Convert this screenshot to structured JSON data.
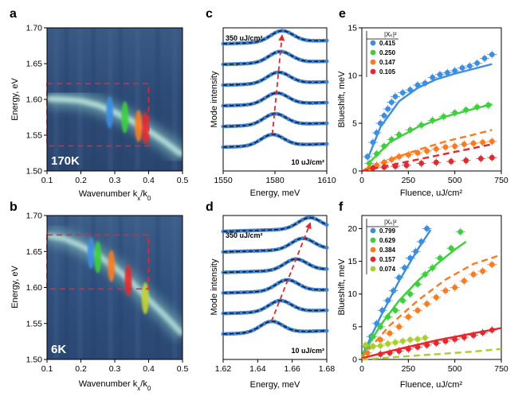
{
  "chart_data": [
    {
      "panel": "a",
      "type": "heatmap",
      "xlabel": "Wavenumber k_x/k_0",
      "ylabel": "Energy, eV",
      "xlim": [
        0.1,
        0.5
      ],
      "ylim": [
        1.5,
        1.7
      ],
      "xticks": [
        "0.1",
        "0.2",
        "0.3",
        "0.4",
        "0.5"
      ],
      "yticks": [
        "1.50",
        "1.55",
        "1.60",
        "1.65",
        "1.70"
      ],
      "temperature_label": "170K",
      "dispersion": [
        [
          0.1,
          1.601
        ],
        [
          0.15,
          1.6
        ],
        [
          0.2,
          1.598
        ],
        [
          0.25,
          1.592
        ],
        [
          0.3,
          1.582
        ],
        [
          0.35,
          1.57
        ],
        [
          0.4,
          1.556
        ],
        [
          0.45,
          1.54
        ],
        [
          0.5,
          1.522
        ]
      ],
      "roi": {
        "k": [
          0.1,
          0.4
        ],
        "E": [
          1.535,
          1.622
        ]
      },
      "colored_spots": [
        {
          "k": 0.285,
          "E": 1.582,
          "color": "#3a8ee6"
        },
        {
          "k": 0.33,
          "E": 1.575,
          "color": "#3bd13b"
        },
        {
          "k": 0.37,
          "E": 1.563,
          "color": "#ff7a1a"
        },
        {
          "k": 0.39,
          "E": 1.56,
          "color": "#e8262b"
        }
      ]
    },
    {
      "panel": "b",
      "type": "heatmap",
      "xlabel": "Wavenumber k_x/k_0",
      "ylabel": "Energy, eV",
      "xlim": [
        0.1,
        0.5
      ],
      "ylim": [
        1.5,
        1.7
      ],
      "xticks": [
        "0.1",
        "0.2",
        "0.3",
        "0.4",
        "0.5"
      ],
      "yticks": [
        "1.50",
        "1.55",
        "1.60",
        "1.65",
        "1.70"
      ],
      "temperature_label": "6K",
      "dispersion": [
        [
          0.1,
          1.672
        ],
        [
          0.15,
          1.668
        ],
        [
          0.2,
          1.658
        ],
        [
          0.25,
          1.645
        ],
        [
          0.3,
          1.628
        ],
        [
          0.35,
          1.607
        ],
        [
          0.4,
          1.583
        ],
        [
          0.45,
          1.56
        ],
        [
          0.5,
          1.535
        ]
      ],
      "roi": {
        "k": [
          0.1,
          0.4
        ],
        "E": [
          1.598,
          1.673
        ]
      },
      "colored_spots": [
        {
          "k": 0.23,
          "E": 1.648,
          "color": "#3a8ee6"
        },
        {
          "k": 0.25,
          "E": 1.642,
          "color": "#3bd13b"
        },
        {
          "k": 0.29,
          "E": 1.63,
          "color": "#ff7a1a"
        },
        {
          "k": 0.34,
          "E": 1.61,
          "color": "#e8262b"
        },
        {
          "k": 0.39,
          "E": 1.585,
          "color": "#c7d42a"
        }
      ]
    },
    {
      "panel": "c",
      "type": "line",
      "xlabel": "Energy, meV",
      "ylabel": "Mode intensity",
      "xlim": [
        1550,
        1610
      ],
      "xticks": [
        "1550",
        "1580",
        "1610"
      ],
      "top_label": "350 uJ/cm²",
      "bottom_label": "10 uJ/cm²",
      "peak_centers": [
        1578.5,
        1580.0,
        1581.0,
        1582.0,
        1583.0,
        1584.0
      ],
      "peak_width": 6.5
    },
    {
      "panel": "d",
      "type": "line",
      "xlabel": "Energy, meV",
      "ylabel": "Mode intensity",
      "xlim": [
        1.62,
        1.68
      ],
      "xticks": [
        "1.62",
        "1.64",
        "1.66",
        "1.68"
      ],
      "top_label": "350 uJ/cm²",
      "bottom_label": "10 uJ/cm²",
      "peak_centers": [
        1.648,
        1.653,
        1.657,
        1.662,
        1.666,
        1.67
      ],
      "peak_width": 0.0065
    },
    {
      "panel": "e",
      "type": "scatter",
      "xlabel": "Fluence, uJ/cm²",
      "ylabel": "Blueshift, meV",
      "xlim": [
        0,
        750
      ],
      "ylim": [
        0,
        15
      ],
      "xticks": [
        "0",
        "250",
        "500",
        "750"
      ],
      "yticks": [
        "0",
        "5",
        "10",
        "15"
      ],
      "legend_title": "|Xₖ|²",
      "series": [
        {
          "name": "0.415",
          "color": "#3a8ee6",
          "x": [
            30,
            60,
            80,
            100,
            120,
            140,
            160,
            180,
            220,
            260,
            300,
            340,
            380,
            420,
            460,
            500,
            540,
            580,
            620,
            660,
            700
          ],
          "y": [
            1.5,
            3.0,
            4.0,
            5.0,
            5.8,
            6.5,
            7.2,
            7.8,
            8.2,
            8.5,
            9.0,
            9.2,
            9.8,
            10.1,
            10.3,
            10.5,
            10.8,
            11.0,
            11.3,
            11.8,
            12.2
          ],
          "fit": [
            [
              30,
              1.2
            ],
            [
              100,
              4.6
            ],
            [
              200,
              7.3
            ],
            [
              300,
              8.7
            ],
            [
              400,
              9.6
            ],
            [
              500,
              10.2
            ],
            [
              600,
              10.7
            ],
            [
              700,
              11.2
            ]
          ],
          "fit_dashed_until": 160
        },
        {
          "name": "0.250",
          "color": "#3bd13b",
          "x": [
            40,
            80,
            120,
            160,
            200,
            260,
            320,
            380,
            440,
            500,
            560,
            620,
            680
          ],
          "y": [
            0.8,
            1.8,
            2.6,
            3.3,
            3.8,
            4.3,
            4.8,
            5.3,
            5.7,
            6.1,
            6.4,
            6.7,
            6.9
          ],
          "fit": [
            [
              30,
              0.7
            ],
            [
              150,
              3.0
            ],
            [
              300,
              4.6
            ],
            [
              450,
              5.7
            ],
            [
              600,
              6.5
            ],
            [
              700,
              7.0
            ]
          ],
          "fit_dashed_until": 0
        },
        {
          "name": "0.147",
          "color": "#ff7a1a",
          "x": [
            40,
            80,
            120,
            160,
            200,
            250,
            300,
            350,
            400,
            450,
            500,
            550,
            600,
            650,
            700
          ],
          "y": [
            0.3,
            0.6,
            0.9,
            1.2,
            1.5,
            1.7,
            1.9,
            2.1,
            2.3,
            2.5,
            2.6,
            2.8,
            2.9,
            3.0,
            3.1
          ],
          "fit": [
            [
              0,
              0
            ],
            [
              150,
              1.2
            ],
            [
              300,
              2.2
            ],
            [
              450,
              3.1
            ],
            [
              600,
              3.8
            ],
            [
              700,
              4.3
            ]
          ],
          "fit_dashed_until": 750
        },
        {
          "name": "0.105",
          "color": "#e8262b",
          "x": [
            60,
            120,
            180,
            240,
            320,
            400,
            480,
            560,
            640,
            700
          ],
          "y": [
            0.3,
            0.4,
            0.5,
            0.6,
            0.8,
            0.9,
            1.0,
            1.1,
            1.3,
            1.4
          ],
          "fit": [
            [
              0,
              0
            ],
            [
              150,
              0.6
            ],
            [
              300,
              1.2
            ],
            [
              450,
              1.8
            ],
            [
              600,
              2.4
            ],
            [
              700,
              2.8
            ]
          ],
          "fit_dashed_until": 750
        }
      ]
    },
    {
      "panel": "f",
      "type": "scatter",
      "xlabel": "Fluence, uJ/cm²",
      "ylabel": "Blueshift, meV",
      "xlim": [
        0,
        750
      ],
      "ylim": [
        0,
        22
      ],
      "xticks": [
        "0",
        "250",
        "500",
        "750"
      ],
      "yticks": [
        "0",
        "5",
        "10",
        "15",
        "20"
      ],
      "legend_title": "|Xₖ|²",
      "series": [
        {
          "name": "0.799",
          "color": "#3a8ee6",
          "x": [
            20,
            50,
            80,
            110,
            140,
            170,
            200,
            230,
            260,
            290,
            320,
            350
          ],
          "y": [
            2.0,
            3.5,
            5.5,
            7.5,
            9.0,
            10.5,
            12.5,
            14.0,
            15.5,
            16.5,
            18.0,
            20.0
          ],
          "fit": [
            [
              0,
              0.5
            ],
            [
              100,
              6.5
            ],
            [
              200,
              12.0
            ],
            [
              300,
              16.8
            ],
            [
              370,
              19.8
            ]
          ],
          "fit_dashed_until": 400
        },
        {
          "name": "0.629",
          "color": "#3bd13b",
          "x": [
            30,
            60,
            100,
            140,
            180,
            220,
            260,
            300,
            340,
            380,
            420,
            480,
            530
          ],
          "y": [
            2.0,
            3.5,
            5.0,
            6.5,
            7.5,
            9.0,
            10.0,
            11.5,
            13.0,
            14.0,
            15.5,
            17.0,
            19.5
          ],
          "fit": [
            [
              0,
              0.5
            ],
            [
              100,
              5.2
            ],
            [
              200,
              9.0
            ],
            [
              300,
              12.0
            ],
            [
              400,
              14.5
            ],
            [
              500,
              16.8
            ],
            [
              560,
              18.0
            ]
          ],
          "fit_dashed_until": 600
        },
        {
          "name": "0.384",
          "color": "#ff7a1a",
          "x": [
            30,
            60,
            100,
            150,
            200,
            250,
            300,
            350,
            400,
            450,
            500,
            550,
            600,
            650,
            700
          ],
          "y": [
            1.0,
            2.0,
            3.0,
            4.0,
            5.0,
            6.5,
            7.5,
            8.5,
            9.5,
            10.5,
            11.0,
            12.0,
            13.0,
            13.5,
            14.5
          ],
          "fit": [
            [
              0,
              0.3
            ],
            [
              150,
              5.2
            ],
            [
              300,
              9.0
            ],
            [
              450,
              12.2
            ],
            [
              600,
              14.6
            ],
            [
              750,
              16.0
            ]
          ],
          "fit_dashed_until": 750
        },
        {
          "name": "0.157",
          "color": "#e8262b",
          "x": [
            100,
            150,
            200,
            250,
            300,
            350,
            400,
            450,
            500,
            550,
            600,
            650,
            700
          ],
          "y": [
            0.8,
            1.0,
            1.3,
            1.6,
            1.9,
            2.2,
            2.5,
            2.8,
            3.1,
            3.4,
            3.7,
            4.1,
            4.5
          ],
          "fit": [
            [
              0,
              0.2
            ],
            [
              200,
              1.6
            ],
            [
              400,
              2.9
            ],
            [
              600,
              4.0
            ],
            [
              750,
              4.8
            ]
          ],
          "fit_dashed_until": 0
        },
        {
          "name": "0.074",
          "color": "#a8cf2a",
          "x": [
            20,
            60,
            100,
            140,
            180,
            220,
            260,
            300,
            340
          ],
          "y": [
            2.2,
            2.0,
            2.1,
            2.4,
            2.6,
            2.8,
            3.0,
            3.1,
            3.3
          ],
          "fit": [
            [
              0,
              0
            ],
            [
              200,
              0.4
            ],
            [
              400,
              0.8
            ],
            [
              600,
              1.2
            ],
            [
              750,
              1.6
            ]
          ],
          "fit_dashed_until": 750
        }
      ]
    }
  ],
  "panel_letters": [
    "a",
    "b",
    "c",
    "d",
    "e",
    "f"
  ]
}
